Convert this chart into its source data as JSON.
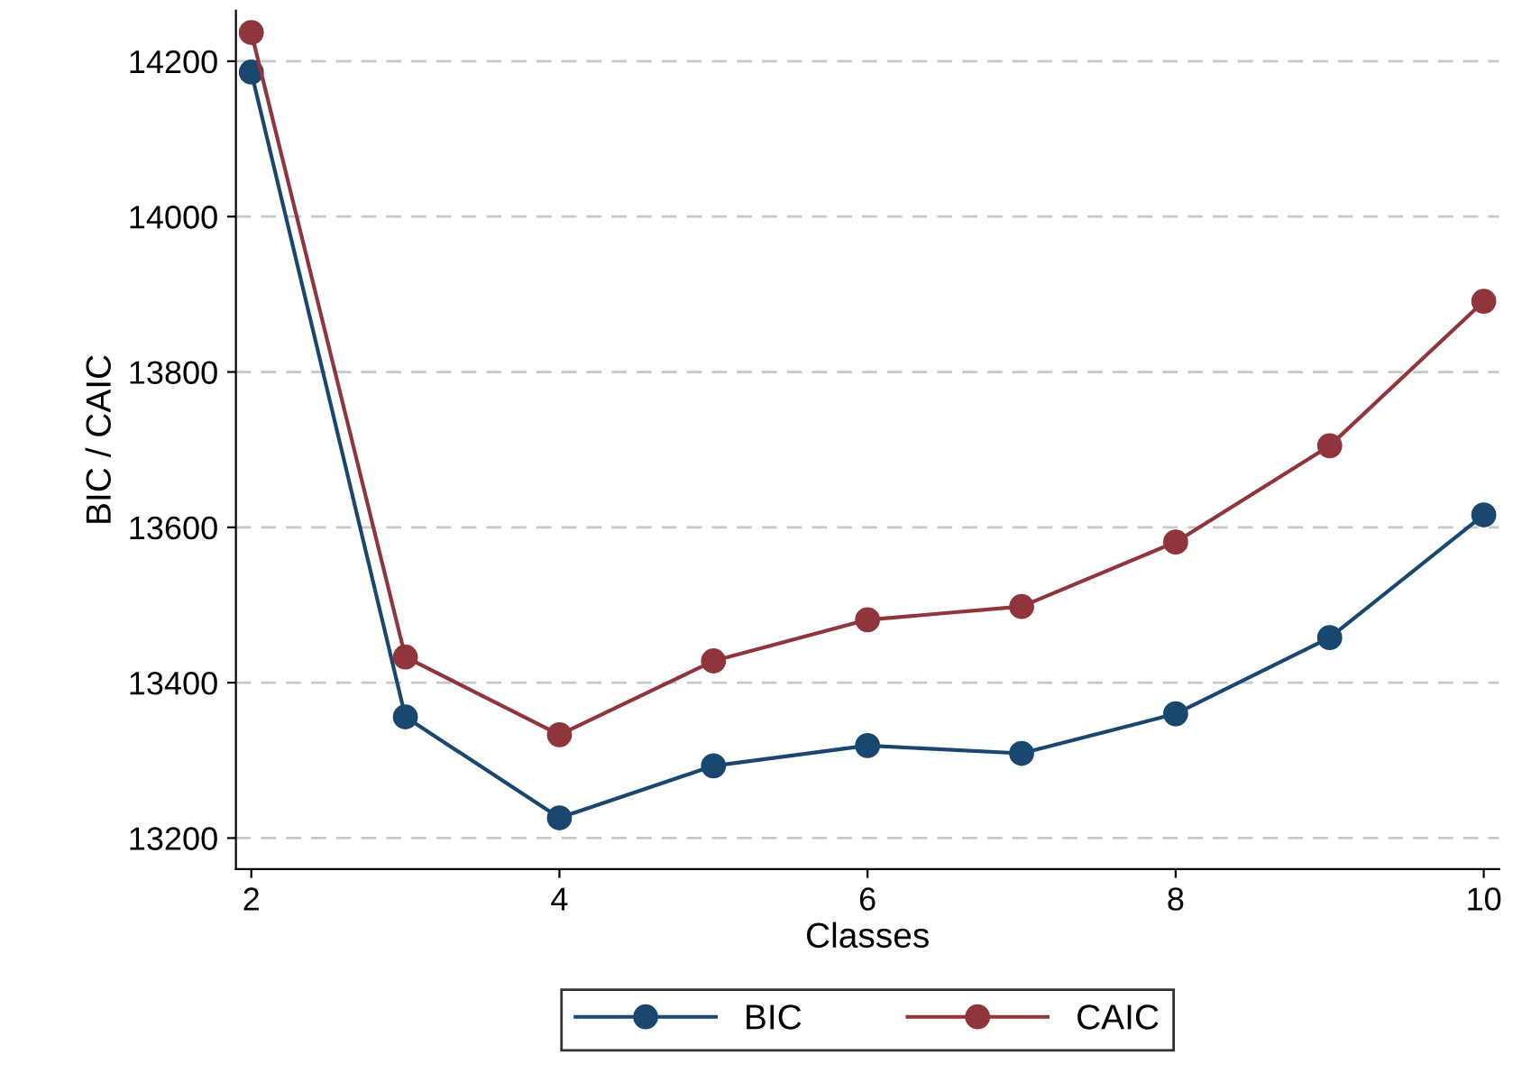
{
  "chart_data": {
    "type": "line",
    "xlabel": "Classes",
    "ylabel": "BIC / CAIC",
    "x": [
      2,
      3,
      4,
      5,
      6,
      7,
      8,
      9,
      10
    ],
    "series": [
      {
        "name": "BIC",
        "color": "#1a476f",
        "values": [
          14186,
          13356,
          13226,
          13293,
          13319,
          13309,
          13360,
          13458,
          13616
        ]
      },
      {
        "name": "CAIC",
        "color": "#90353b",
        "values": [
          14237,
          13433,
          13333,
          13428,
          13481,
          13498,
          13581,
          13705,
          13891
        ]
      }
    ],
    "xlim": [
      1.9,
      10.1
    ],
    "xticks": [
      2,
      4,
      6,
      8,
      10
    ],
    "ylim": [
      13160,
      14265
    ],
    "yticks": [
      13200,
      13400,
      13600,
      13800,
      14000,
      14200
    ],
    "grid": "y",
    "legend": "bottom",
    "marker": "circle",
    "line_style": "solid"
  }
}
